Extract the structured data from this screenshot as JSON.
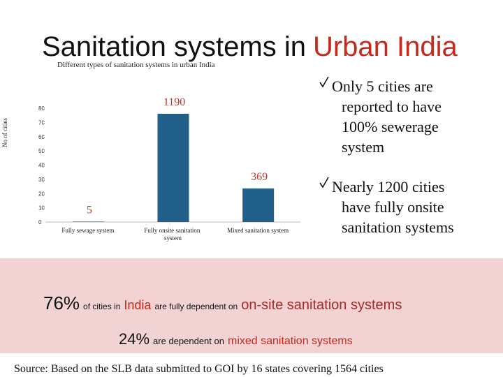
{
  "chart_data": {
    "type": "bar",
    "title": [
      "Sanitation systems in",
      "Urban India"
    ],
    "subtitle": "Different types of sanitation systems in urban India",
    "ylabel": "No of cities",
    "categories": [
      "Fully sewage system",
      "Fully onsite sanitation system",
      "Mixed sanitation system"
    ],
    "values": [
      0.3,
      76.1,
      23.6
    ],
    "annotations": [
      "5",
      "1190",
      "369"
    ],
    "color": "#21608a",
    "ylim": [
      0,
      80
    ],
    "yticks": [
      0,
      10,
      20,
      30,
      40,
      50,
      60,
      70,
      80
    ],
    "grid": false
  },
  "bullets": [
    [
      "Only 5 cities are",
      "reported to have",
      "100% sewerage",
      "system"
    ],
    [
      "Nearly 1200 cities",
      "have fully onsite",
      "sanitation systems"
    ]
  ],
  "summary": [
    [
      "76%",
      "of cities in",
      "India",
      "are fully dependent on",
      "on-site sanitation systems"
    ],
    [
      "24%",
      "are dependent on",
      "mixed sanitation systems"
    ]
  ],
  "source": "Source: Based on the SLB data submitted to GOI by 16 states covering 1564 cities"
}
